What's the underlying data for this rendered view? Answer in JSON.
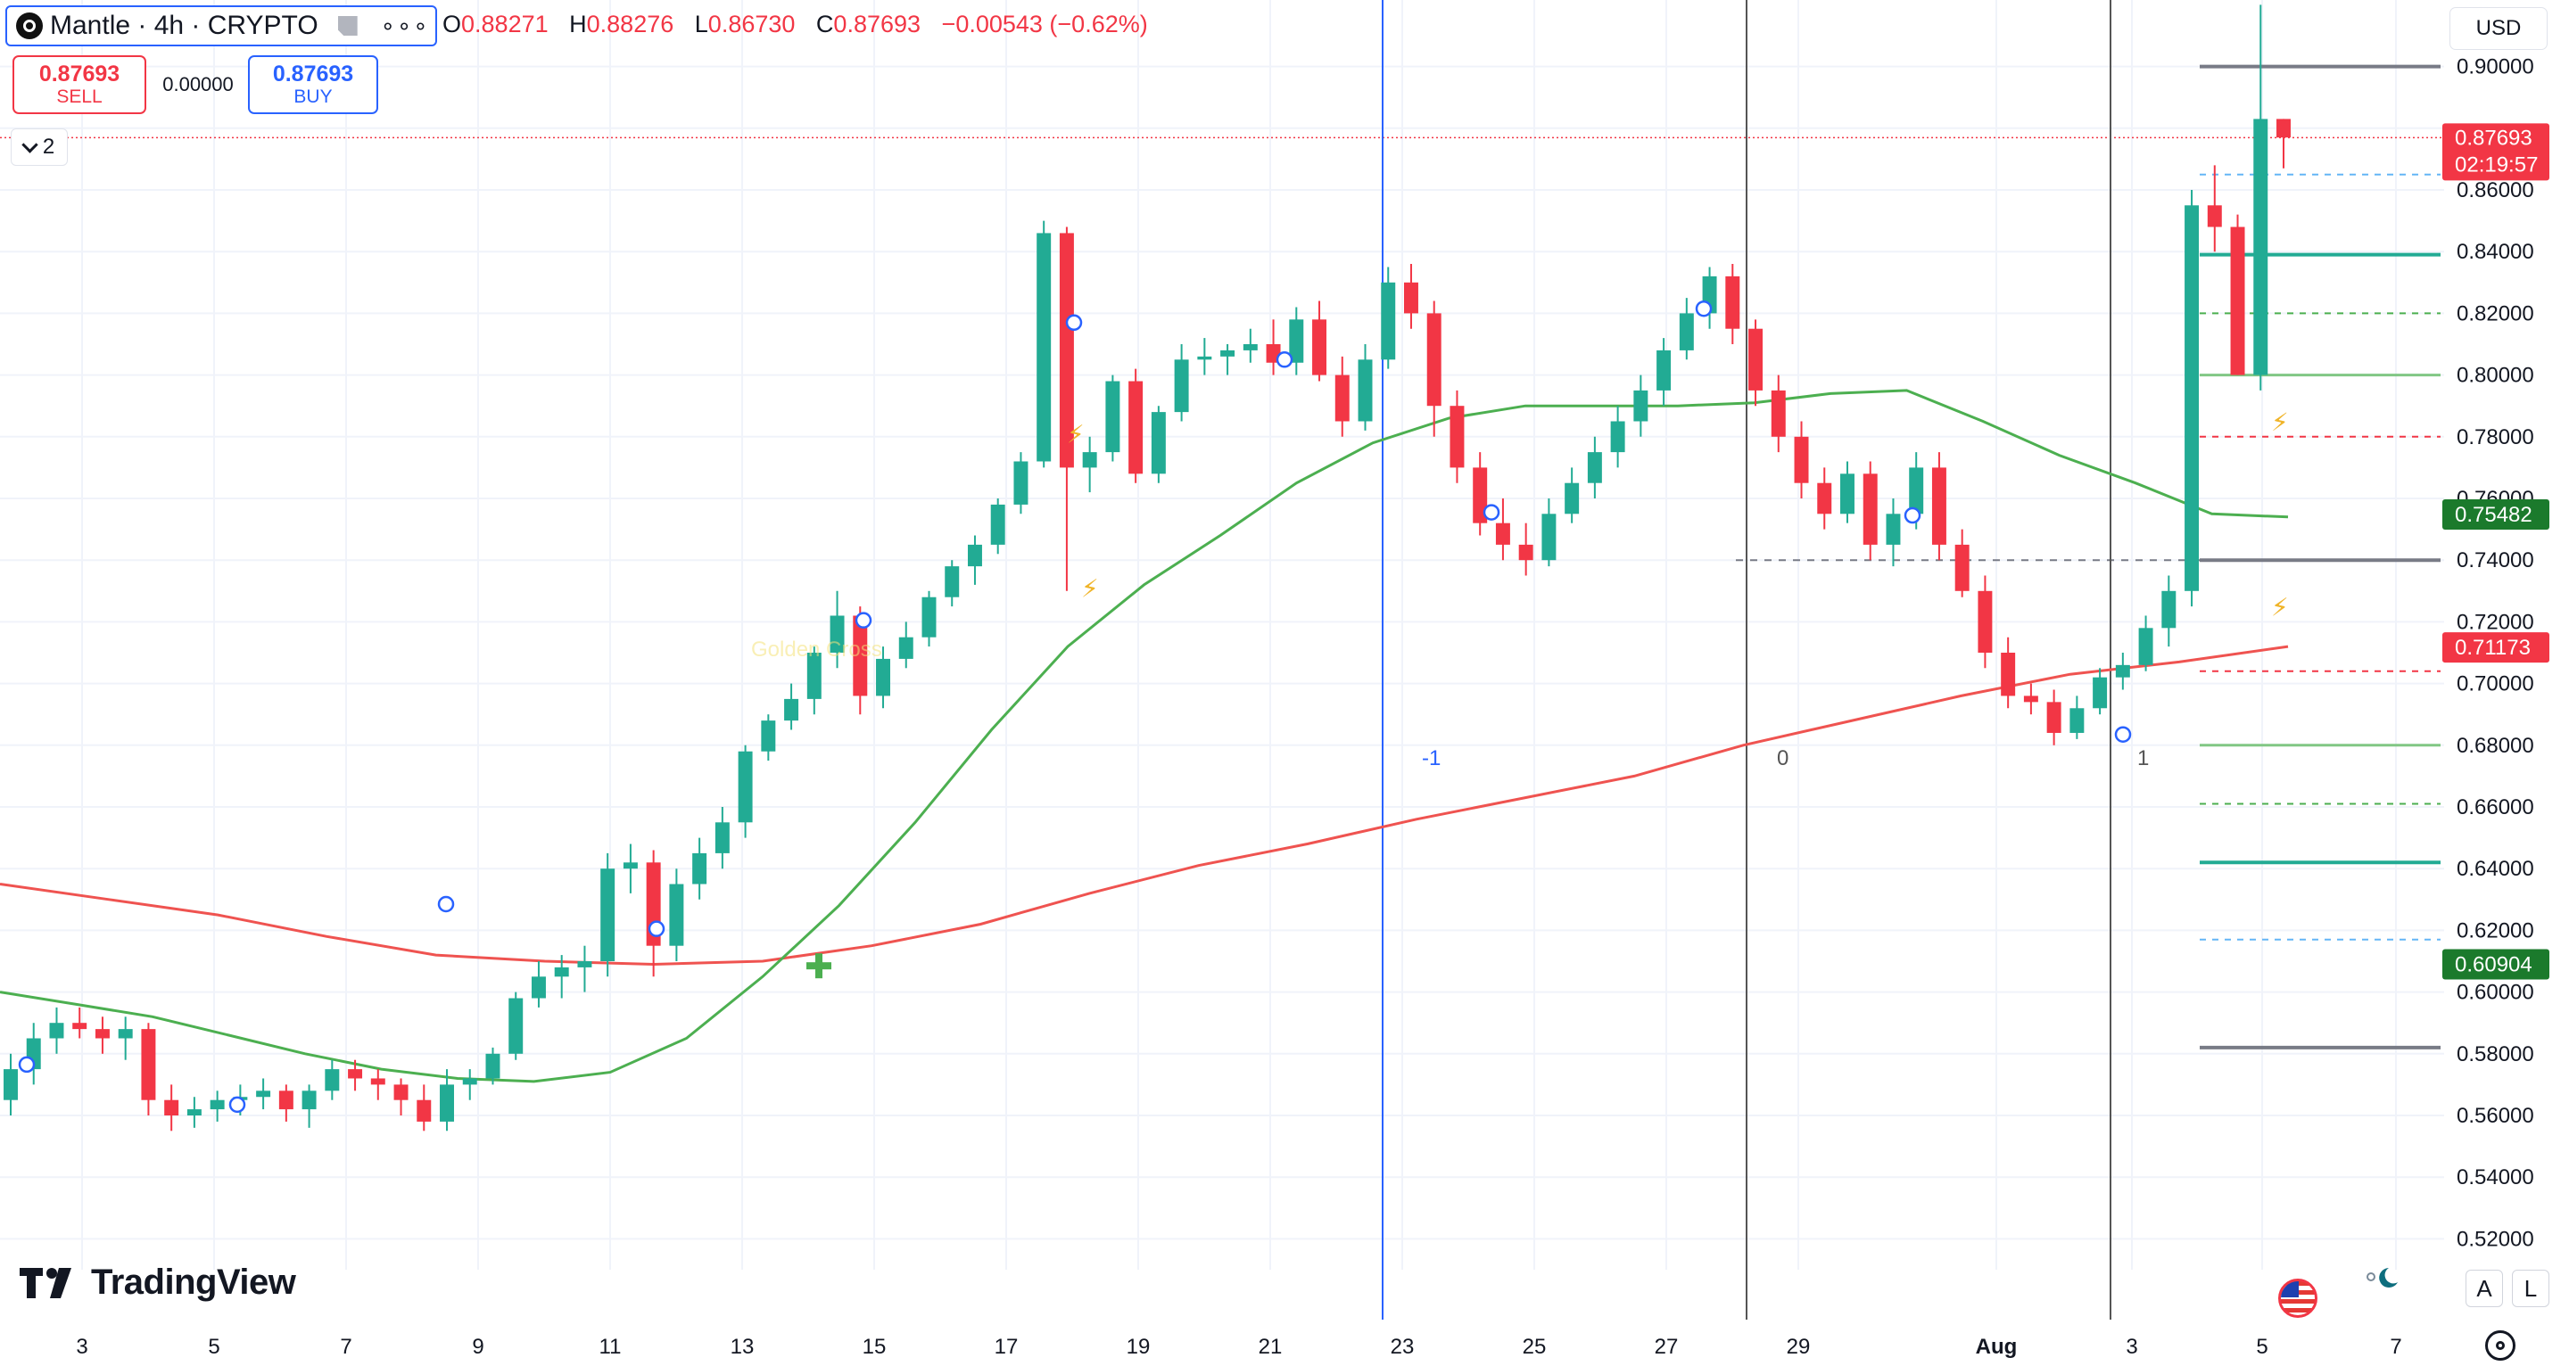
{
  "symbol": {
    "name": "Mantle · 4h · CRYPTO",
    "more_label": "∘∘∘"
  },
  "ohlc": {
    "o_label": "O",
    "o_value": "0.88271",
    "h_label": "H",
    "h_value": "0.88276",
    "l_label": "L",
    "l_value": "0.86730",
    "c_label": "C",
    "c_value": "0.87693",
    "change": "−0.00543 (−0.62%)"
  },
  "trade": {
    "sell_price": "0.87693",
    "sell_label": "SELL",
    "spread": "0.00000",
    "buy_price": "0.87693",
    "buy_label": "BUY"
  },
  "indicators_toggle": {
    "count": "2"
  },
  "currency": "USD",
  "price_axis": {
    "ticks": [
      "0.90000",
      "0.86000",
      "0.84000",
      "0.82000",
      "0.80000",
      "0.78000",
      "0.76000",
      "0.74000",
      "0.72000",
      "0.70000",
      "0.68000",
      "0.66000",
      "0.64000",
      "0.62000",
      "0.60000",
      "0.58000",
      "0.56000",
      "0.54000",
      "0.52000"
    ],
    "last_price": "0.87693",
    "countdown": "02:19:57",
    "ma_short": "0.75482",
    "ma_long": "0.71173",
    "level_low": "0.60904"
  },
  "time_axis": {
    "labels": [
      "3",
      "5",
      "7",
      "9",
      "11",
      "13",
      "15",
      "17",
      "19",
      "21",
      "23",
      "25",
      "27",
      "29",
      "Aug",
      "3",
      "5",
      "7"
    ]
  },
  "annotations": {
    "cycle_marks": [
      "-1",
      "0",
      "1"
    ],
    "cross_label": "Golden Cross"
  },
  "colors": {
    "up": "#22ab94",
    "down": "#f23645",
    "ma_short": "#4caf50",
    "ma_long": "#ef5350",
    "accent": "#2962ff"
  },
  "footer": {
    "brand": "TradingView",
    "auto_button": "A",
    "log_button": "L"
  },
  "icons": {
    "flag": "us-flag-icon",
    "session": "moon-sun-icon",
    "settings": "gear-icon"
  },
  "chart_data": {
    "type": "candlestick",
    "interval": "4h",
    "ylim": [
      0.51,
      0.91
    ],
    "candles": [
      [
        0.565,
        0.58,
        0.56,
        0.575
      ],
      [
        0.575,
        0.59,
        0.57,
        0.585
      ],
      [
        0.585,
        0.595,
        0.58,
        0.59
      ],
      [
        0.59,
        0.595,
        0.585,
        0.588
      ],
      [
        0.588,
        0.592,
        0.58,
        0.585
      ],
      [
        0.585,
        0.592,
        0.578,
        0.588
      ],
      [
        0.588,
        0.59,
        0.56,
        0.565
      ],
      [
        0.565,
        0.57,
        0.555,
        0.56
      ],
      [
        0.56,
        0.566,
        0.556,
        0.562
      ],
      [
        0.562,
        0.568,
        0.558,
        0.565
      ],
      [
        0.565,
        0.57,
        0.56,
        0.566
      ],
      [
        0.566,
        0.572,
        0.562,
        0.568
      ],
      [
        0.568,
        0.57,
        0.558,
        0.562
      ],
      [
        0.562,
        0.57,
        0.556,
        0.568
      ],
      [
        0.568,
        0.578,
        0.565,
        0.575
      ],
      [
        0.575,
        0.578,
        0.568,
        0.572
      ],
      [
        0.572,
        0.575,
        0.565,
        0.57
      ],
      [
        0.57,
        0.572,
        0.56,
        0.565
      ],
      [
        0.565,
        0.57,
        0.555,
        0.558
      ],
      [
        0.558,
        0.575,
        0.555,
        0.57
      ],
      [
        0.57,
        0.575,
        0.565,
        0.572
      ],
      [
        0.572,
        0.582,
        0.57,
        0.58
      ],
      [
        0.58,
        0.6,
        0.578,
        0.598
      ],
      [
        0.598,
        0.61,
        0.595,
        0.605
      ],
      [
        0.605,
        0.612,
        0.598,
        0.608
      ],
      [
        0.608,
        0.615,
        0.6,
        0.61
      ],
      [
        0.61,
        0.645,
        0.605,
        0.64
      ],
      [
        0.64,
        0.648,
        0.632,
        0.642
      ],
      [
        0.642,
        0.646,
        0.605,
        0.615
      ],
      [
        0.615,
        0.64,
        0.61,
        0.635
      ],
      [
        0.635,
        0.65,
        0.63,
        0.645
      ],
      [
        0.645,
        0.66,
        0.64,
        0.655
      ],
      [
        0.655,
        0.68,
        0.65,
        0.678
      ],
      [
        0.678,
        0.69,
        0.675,
        0.688
      ],
      [
        0.688,
        0.7,
        0.685,
        0.695
      ],
      [
        0.695,
        0.712,
        0.69,
        0.71
      ],
      [
        0.71,
        0.73,
        0.705,
        0.722
      ],
      [
        0.722,
        0.725,
        0.69,
        0.696
      ],
      [
        0.696,
        0.712,
        0.692,
        0.708
      ],
      [
        0.708,
        0.72,
        0.705,
        0.715
      ],
      [
        0.715,
        0.73,
        0.712,
        0.728
      ],
      [
        0.728,
        0.74,
        0.725,
        0.738
      ],
      [
        0.738,
        0.748,
        0.732,
        0.745
      ],
      [
        0.745,
        0.76,
        0.742,
        0.758
      ],
      [
        0.758,
        0.775,
        0.755,
        0.772
      ],
      [
        0.772,
        0.85,
        0.77,
        0.846
      ],
      [
        0.846,
        0.848,
        0.73,
        0.77
      ],
      [
        0.77,
        0.78,
        0.762,
        0.775
      ],
      [
        0.775,
        0.8,
        0.772,
        0.798
      ],
      [
        0.798,
        0.802,
        0.765,
        0.768
      ],
      [
        0.768,
        0.79,
        0.765,
        0.788
      ],
      [
        0.788,
        0.81,
        0.785,
        0.805
      ],
      [
        0.805,
        0.812,
        0.8,
        0.806
      ],
      [
        0.806,
        0.81,
        0.8,
        0.808
      ],
      [
        0.808,
        0.815,
        0.804,
        0.81
      ],
      [
        0.81,
        0.818,
        0.8,
        0.804
      ],
      [
        0.804,
        0.822,
        0.8,
        0.818
      ],
      [
        0.818,
        0.824,
        0.798,
        0.8
      ],
      [
        0.8,
        0.806,
        0.78,
        0.785
      ],
      [
        0.785,
        0.81,
        0.782,
        0.805
      ],
      [
        0.805,
        0.835,
        0.802,
        0.83
      ],
      [
        0.83,
        0.836,
        0.815,
        0.82
      ],
      [
        0.82,
        0.824,
        0.78,
        0.79
      ],
      [
        0.79,
        0.795,
        0.765,
        0.77
      ],
      [
        0.77,
        0.775,
        0.748,
        0.752
      ],
      [
        0.752,
        0.76,
        0.74,
        0.745
      ],
      [
        0.745,
        0.752,
        0.735,
        0.74
      ],
      [
        0.74,
        0.76,
        0.738,
        0.755
      ],
      [
        0.755,
        0.77,
        0.752,
        0.765
      ],
      [
        0.765,
        0.78,
        0.76,
        0.775
      ],
      [
        0.775,
        0.79,
        0.77,
        0.785
      ],
      [
        0.785,
        0.8,
        0.78,
        0.795
      ],
      [
        0.795,
        0.812,
        0.79,
        0.808
      ],
      [
        0.808,
        0.825,
        0.805,
        0.82
      ],
      [
        0.82,
        0.835,
        0.815,
        0.832
      ],
      [
        0.832,
        0.836,
        0.81,
        0.815
      ],
      [
        0.815,
        0.818,
        0.79,
        0.795
      ],
      [
        0.795,
        0.8,
        0.775,
        0.78
      ],
      [
        0.78,
        0.785,
        0.76,
        0.765
      ],
      [
        0.765,
        0.77,
        0.75,
        0.755
      ],
      [
        0.755,
        0.772,
        0.752,
        0.768
      ],
      [
        0.768,
        0.772,
        0.74,
        0.745
      ],
      [
        0.745,
        0.76,
        0.738,
        0.755
      ],
      [
        0.755,
        0.775,
        0.75,
        0.77
      ],
      [
        0.77,
        0.775,
        0.74,
        0.745
      ],
      [
        0.745,
        0.75,
        0.728,
        0.73
      ],
      [
        0.73,
        0.735,
        0.705,
        0.71
      ],
      [
        0.71,
        0.715,
        0.692,
        0.696
      ],
      [
        0.696,
        0.7,
        0.69,
        0.694
      ],
      [
        0.694,
        0.698,
        0.68,
        0.684
      ],
      [
        0.684,
        0.696,
        0.682,
        0.692
      ],
      [
        0.692,
        0.705,
        0.69,
        0.702
      ],
      [
        0.702,
        0.71,
        0.698,
        0.706
      ],
      [
        0.706,
        0.722,
        0.704,
        0.718
      ],
      [
        0.718,
        0.735,
        0.712,
        0.73
      ],
      [
        0.73,
        0.86,
        0.725,
        0.855
      ],
      [
        0.855,
        0.868,
        0.84,
        0.848
      ],
      [
        0.848,
        0.852,
        0.8,
        0.8
      ],
      [
        0.8,
        0.92,
        0.795,
        0.883
      ],
      [
        0.883,
        0.883,
        0.867,
        0.877
      ]
    ],
    "ma_short_values": [
      0.6,
      0.596,
      0.592,
      0.586,
      0.58,
      0.575,
      0.572,
      0.571,
      0.574,
      0.585,
      0.605,
      0.628,
      0.655,
      0.685,
      0.712,
      0.732,
      0.748,
      0.765,
      0.778,
      0.786,
      0.79,
      0.79,
      0.79,
      0.791,
      0.794,
      0.795,
      0.785,
      0.774,
      0.765,
      0.755,
      0.754
    ],
    "ma_long_values": [
      0.635,
      0.63,
      0.625,
      0.618,
      0.612,
      0.61,
      0.609,
      0.61,
      0.615,
      0.622,
      0.632,
      0.641,
      0.648,
      0.656,
      0.663,
      0.67,
      0.68,
      0.688,
      0.696,
      0.703,
      0.707,
      0.712
    ]
  }
}
